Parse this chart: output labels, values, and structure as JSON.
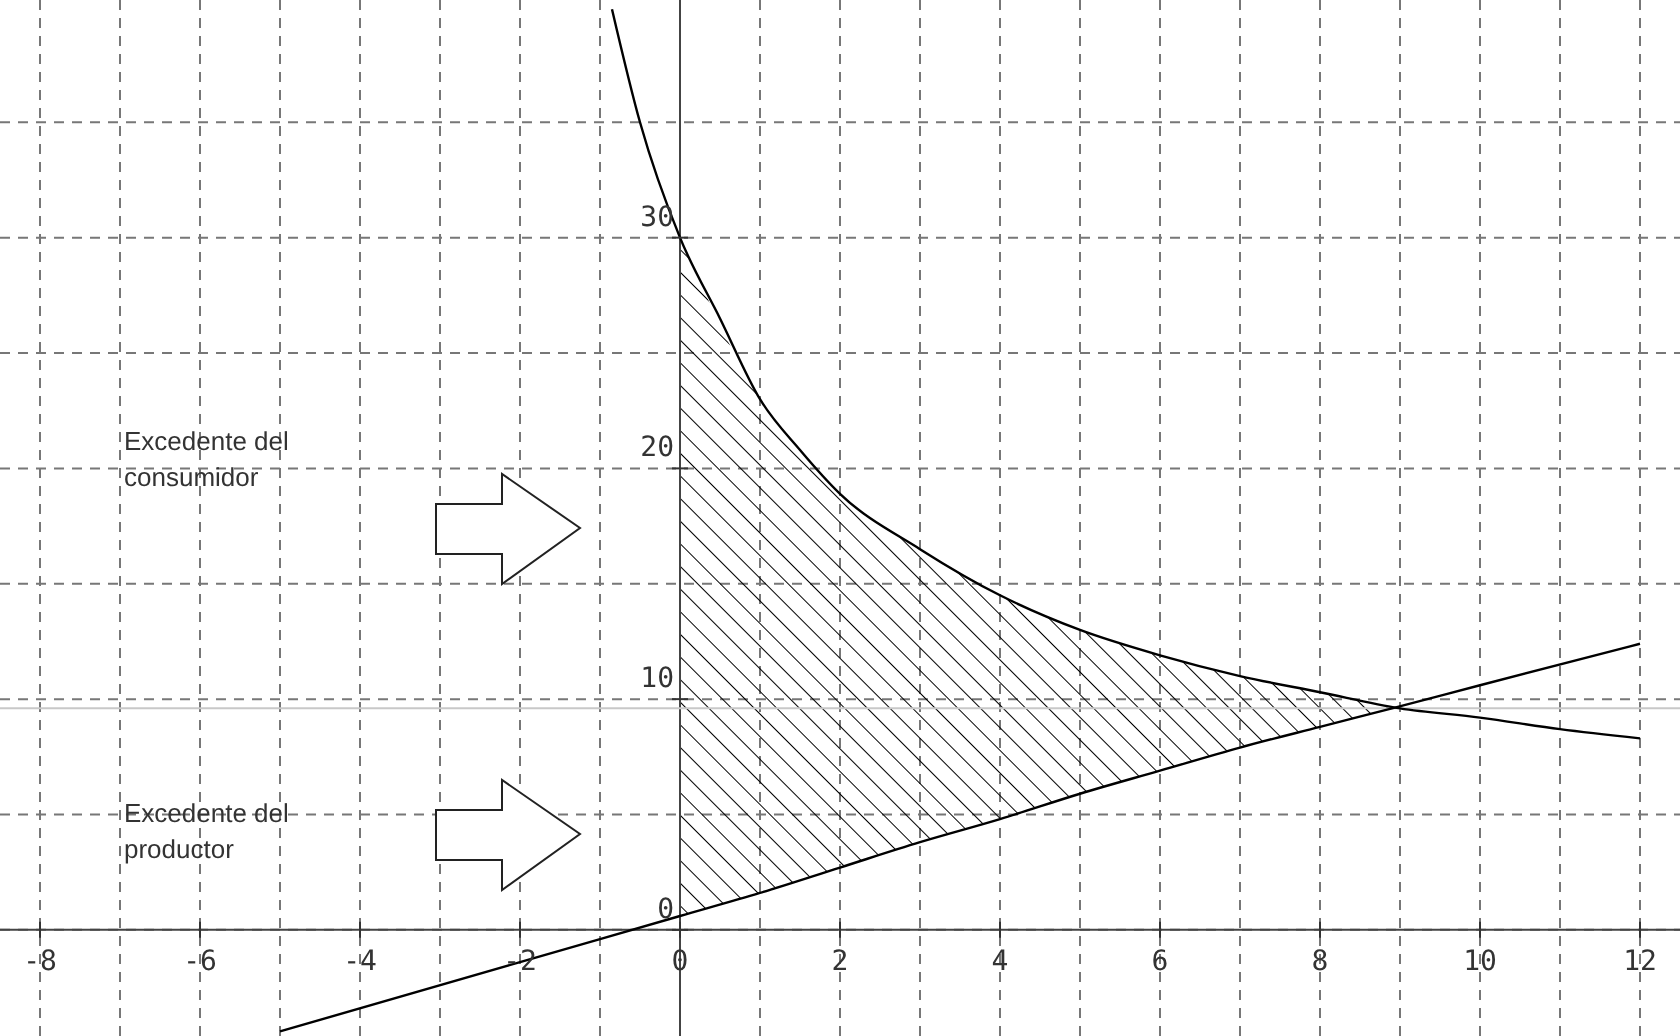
{
  "chart_data": {
    "type": "line",
    "xlim": [
      -8.5,
      12.5
    ],
    "ylim": [
      -4.6,
      40.3
    ],
    "xticks": [
      {
        "value": -8,
        "label": "-8"
      },
      {
        "value": -7,
        "label": null
      },
      -6,
      {
        "value": -5,
        "label": null
      },
      -4,
      {
        "value": -3,
        "label": null
      },
      -2,
      {
        "value": -1,
        "label": null
      },
      0,
      {
        "value": 1,
        "label": null
      },
      2,
      {
        "value": 3,
        "label": null
      },
      4,
      {
        "value": 5,
        "label": null
      },
      6,
      {
        "value": 7,
        "label": null
      },
      8,
      {
        "value": 9,
        "label": null
      },
      10,
      {
        "value": 11,
        "label": null
      },
      12
    ],
    "yticks": [
      0,
      {
        "value": 5,
        "label": null
      },
      10,
      {
        "value": 15,
        "label": null
      },
      20,
      {
        "value": 25,
        "label": null
      },
      30,
      {
        "value": 35,
        "label": null
      }
    ],
    "grid": true,
    "legend": false,
    "marker": "none",
    "line_style": "solid",
    "series": [
      {
        "type": "line",
        "color": "#000000",
        "x": [
          -0.85,
          -0.5,
          0,
          0.5,
          1,
          1.5,
          2,
          3,
          4,
          5,
          6,
          7,
          8,
          9,
          10,
          11,
          12
        ],
        "values": [
          39.9,
          35.0,
          30,
          26.5,
          23,
          20.8,
          18.9,
          16.5,
          14.5,
          13,
          11.9,
          11,
          10.3,
          9.6,
          9.2,
          8.7,
          8.3
        ]
      },
      {
        "type": "line",
        "color": "#000000",
        "x": [
          -5,
          -2,
          0,
          1,
          2,
          3,
          4,
          5,
          6,
          7,
          8,
          8.9,
          10,
          12
        ],
        "values": [
          -4.4,
          -1.4,
          0.6,
          1.6,
          2.7,
          3.8,
          4.8,
          5.9,
          6.9,
          7.9,
          8.8,
          9.6,
          10.6,
          12.4
        ],
        "lower": [
          null,
          null,
          0.6,
          1.6,
          2.7,
          3.8,
          4.8,
          5.9,
          6.9,
          7.9,
          8.8,
          9.6,
          null,
          null
        ],
        "upper": [
          null,
          null,
          30,
          23,
          18.9,
          16.5,
          14.5,
          13,
          11.9,
          11,
          10.3,
          9.6,
          null,
          null
        ]
      }
    ],
    "ref_lines": [
      {
        "axis": "y",
        "value": 9.6,
        "color": "#c8c8c8"
      }
    ],
    "annotations": [
      "Excedente del consumidor",
      "Excedente del productor"
    ]
  }
}
